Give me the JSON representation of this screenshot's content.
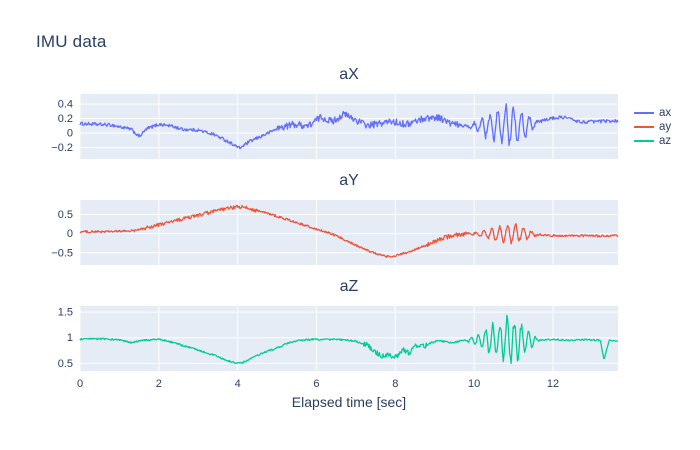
{
  "page": {
    "title": "IMU data"
  },
  "xlabel": "Elapsed time [sec]",
  "legend": {
    "items": [
      {
        "label": "ax",
        "color": "#636efa"
      },
      {
        "label": "ay",
        "color": "#ef553b"
      },
      {
        "label": "az",
        "color": "#00cc96"
      }
    ]
  },
  "chart_data": [
    {
      "type": "line",
      "title": "aX",
      "name": "ax",
      "color": "#636efa",
      "plot_bg": "#e5ecf6",
      "grid_color": "#ffffff",
      "x_range": [
        0,
        13.65
      ],
      "xticks": [
        0,
        2,
        4,
        6,
        8,
        10,
        12
      ],
      "ylim": [
        -0.36,
        0.54
      ],
      "yticks": [
        0.4,
        0.2,
        0,
        -0.2
      ],
      "keyframes": [
        [
          0,
          0.13
        ],
        [
          0.8,
          0.11
        ],
        [
          1.3,
          0.05
        ],
        [
          1.5,
          -0.05
        ],
        [
          1.7,
          0.06
        ],
        [
          2.0,
          0.12
        ],
        [
          2.3,
          0.1
        ],
        [
          2.6,
          0.05
        ],
        [
          3.0,
          0.04
        ],
        [
          3.4,
          -0.02
        ],
        [
          3.8,
          -0.13
        ],
        [
          4.05,
          -0.21
        ],
        [
          4.3,
          -0.12
        ],
        [
          4.7,
          -0.02
        ],
        [
          5.0,
          0.06
        ],
        [
          5.4,
          0.12
        ],
        [
          5.8,
          0.1
        ],
        [
          6.1,
          0.22
        ],
        [
          6.4,
          0.16
        ],
        [
          6.7,
          0.26
        ],
        [
          7.0,
          0.18
        ],
        [
          7.3,
          0.1
        ],
        [
          7.6,
          0.13
        ],
        [
          7.9,
          0.16
        ],
        [
          8.3,
          0.12
        ],
        [
          8.7,
          0.2
        ],
        [
          9.1,
          0.22
        ],
        [
          9.4,
          0.13
        ],
        [
          9.7,
          0.1
        ],
        [
          10.2,
          0.1
        ],
        [
          10.8,
          0.1
        ],
        [
          11.4,
          0.11
        ],
        [
          11.9,
          0.2
        ],
        [
          12.3,
          0.22
        ],
        [
          12.7,
          0.15
        ],
        [
          13.1,
          0.16
        ],
        [
          13.65,
          0.17
        ]
      ],
      "noise": 0.022,
      "noise_regions": [
        {
          "start": 5.0,
          "end": 9.6,
          "amp": 0.025
        }
      ],
      "bursts": [
        {
          "start": 9.75,
          "end": 11.65,
          "freq": 5.0,
          "amp": 0.3
        }
      ]
    },
    {
      "type": "line",
      "title": "aY",
      "name": "ay",
      "color": "#ef553b",
      "plot_bg": "#e5ecf6",
      "grid_color": "#ffffff",
      "x_range": [
        0,
        13.65
      ],
      "xticks": [
        0,
        2,
        4,
        6,
        8,
        10,
        12
      ],
      "ylim": [
        -0.82,
        0.88
      ],
      "yticks": [
        0.5,
        0,
        -0.5
      ],
      "keyframes": [
        [
          0,
          0.05
        ],
        [
          0.5,
          0.05
        ],
        [
          1.0,
          0.06
        ],
        [
          1.4,
          0.08
        ],
        [
          1.8,
          0.18
        ],
        [
          2.2,
          0.28
        ],
        [
          2.6,
          0.38
        ],
        [
          3.0,
          0.48
        ],
        [
          3.4,
          0.58
        ],
        [
          3.7,
          0.65
        ],
        [
          4.0,
          0.7
        ],
        [
          4.2,
          0.68
        ],
        [
          4.5,
          0.6
        ],
        [
          4.8,
          0.52
        ],
        [
          5.1,
          0.42
        ],
        [
          5.4,
          0.32
        ],
        [
          5.7,
          0.22
        ],
        [
          6.0,
          0.12
        ],
        [
          6.3,
          0.02
        ],
        [
          6.6,
          -0.1
        ],
        [
          6.9,
          -0.25
        ],
        [
          7.2,
          -0.4
        ],
        [
          7.5,
          -0.52
        ],
        [
          7.8,
          -0.6
        ],
        [
          8.0,
          -0.58
        ],
        [
          8.3,
          -0.5
        ],
        [
          8.6,
          -0.38
        ],
        [
          8.9,
          -0.25
        ],
        [
          9.2,
          -0.12
        ],
        [
          9.5,
          -0.04
        ],
        [
          9.8,
          0.0
        ],
        [
          10.2,
          0.0
        ],
        [
          10.6,
          -0.02
        ],
        [
          11.0,
          0.0
        ],
        [
          11.5,
          -0.02
        ],
        [
          12.0,
          -0.05
        ],
        [
          12.5,
          -0.05
        ],
        [
          13.0,
          -0.06
        ],
        [
          13.65,
          -0.05
        ]
      ],
      "noise": 0.028,
      "noise_regions": [
        {
          "start": 1.6,
          "end": 4.6,
          "amp": 0.02
        },
        {
          "start": 8.8,
          "end": 9.8,
          "amp": 0.03
        }
      ],
      "bursts": [
        {
          "start": 9.8,
          "end": 11.6,
          "freq": 5.0,
          "amp": 0.25
        }
      ]
    },
    {
      "type": "line",
      "title": "aZ",
      "name": "az",
      "color": "#00cc96",
      "plot_bg": "#e5ecf6",
      "grid_color": "#ffffff",
      "x_range": [
        0,
        13.65
      ],
      "xticks": [
        0,
        2,
        4,
        6,
        8,
        10,
        12
      ],
      "ylim": [
        0.35,
        1.62
      ],
      "yticks": [
        1.5,
        1,
        0.5
      ],
      "keyframes": [
        [
          0,
          0.97
        ],
        [
          0.5,
          0.98
        ],
        [
          1.0,
          0.96
        ],
        [
          1.3,
          0.9
        ],
        [
          1.6,
          0.95
        ],
        [
          2.0,
          0.97
        ],
        [
          2.3,
          0.92
        ],
        [
          2.6,
          0.85
        ],
        [
          3.0,
          0.76
        ],
        [
          3.4,
          0.66
        ],
        [
          3.7,
          0.56
        ],
        [
          4.0,
          0.5
        ],
        [
          4.15,
          0.52
        ],
        [
          4.4,
          0.62
        ],
        [
          4.7,
          0.72
        ],
        [
          5.0,
          0.8
        ],
        [
          5.3,
          0.9
        ],
        [
          5.6,
          0.95
        ],
        [
          5.9,
          0.97
        ],
        [
          6.2,
          0.96
        ],
        [
          6.5,
          0.97
        ],
        [
          6.8,
          0.95
        ],
        [
          7.0,
          0.93
        ],
        [
          7.3,
          0.85
        ],
        [
          7.5,
          0.72
        ],
        [
          7.7,
          0.63
        ],
        [
          7.9,
          0.66
        ],
        [
          8.05,
          0.62
        ],
        [
          8.2,
          0.78
        ],
        [
          8.35,
          0.7
        ],
        [
          8.5,
          0.88
        ],
        [
          8.7,
          0.82
        ],
        [
          8.9,
          0.9
        ],
        [
          9.1,
          0.95
        ],
        [
          9.4,
          0.9
        ],
        [
          9.6,
          0.93
        ],
        [
          9.8,
          0.95
        ],
        [
          10.2,
          0.95
        ],
        [
          10.6,
          0.96
        ],
        [
          11.0,
          0.95
        ],
        [
          11.4,
          0.96
        ],
        [
          11.7,
          0.95
        ],
        [
          12.0,
          0.97
        ],
        [
          12.4,
          0.95
        ],
        [
          12.8,
          0.96
        ],
        [
          13.2,
          0.95
        ],
        [
          13.3,
          0.57
        ],
        [
          13.42,
          0.95
        ],
        [
          13.65,
          0.93
        ]
      ],
      "noise": 0.016,
      "noise_regions": [
        {
          "start": 7.2,
          "end": 8.8,
          "amp": 0.04
        }
      ],
      "bursts": [
        {
          "start": 9.7,
          "end": 11.65,
          "freq": 5.5,
          "amp": 0.42
        }
      ]
    }
  ]
}
